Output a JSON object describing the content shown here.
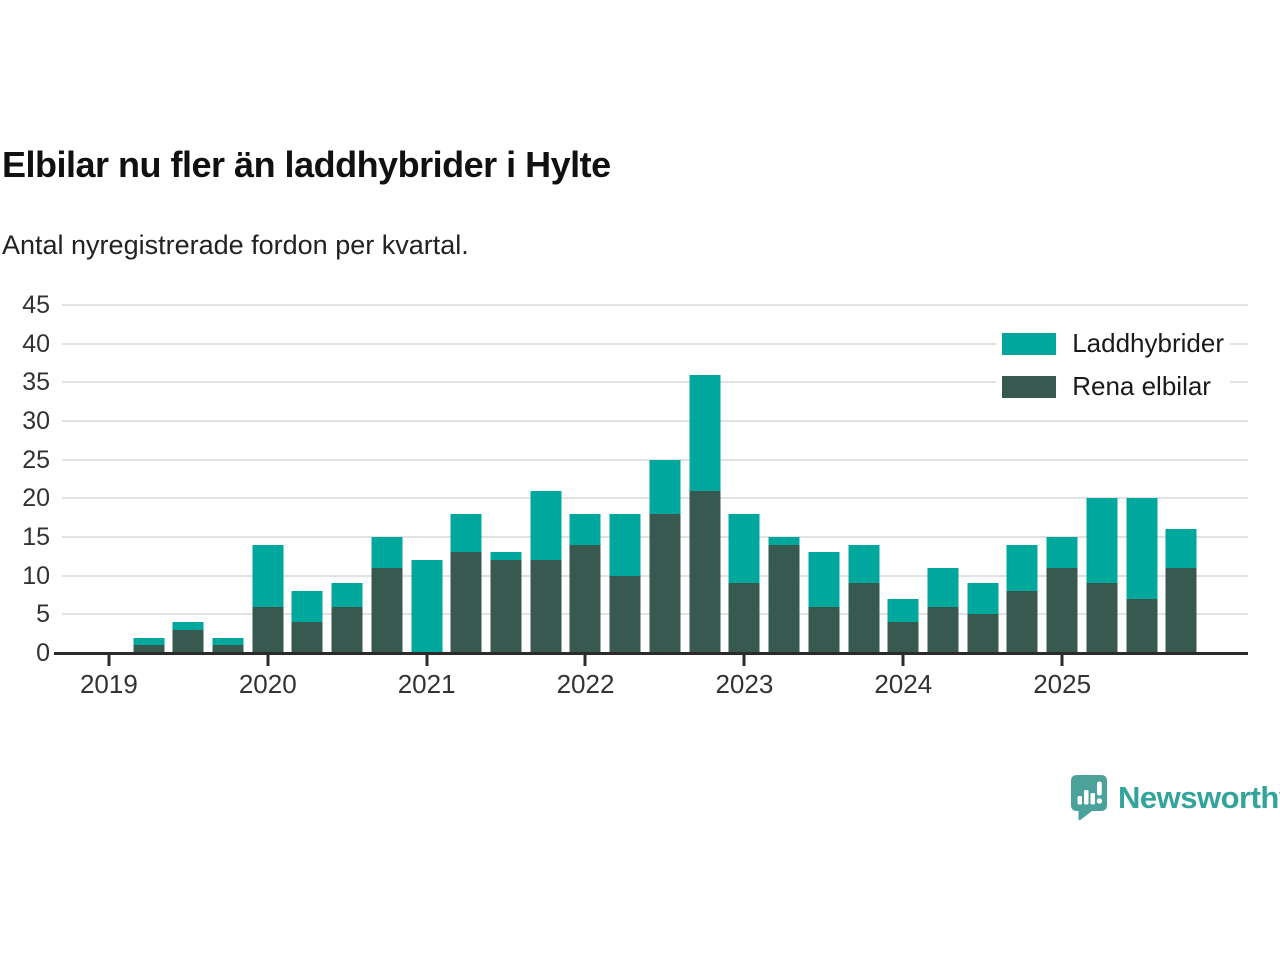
{
  "header": {
    "title": "Elbilar nu fler än laddhybrider i Hylte",
    "subtitle": "Antal nyregistrerade fordon per kvartal."
  },
  "colors": {
    "laddhybrider": "#00a79c",
    "rena_elbilar": "#37594f",
    "grid": "#e2e2e2",
    "axis": "#2b2b2b",
    "text": "#333333",
    "title_text": "#111111",
    "brand": "#32a49b",
    "brand_bubble": "#4ba29b"
  },
  "legend": {
    "items": [
      {
        "label": "Laddhybrider",
        "color_key": "laddhybrider"
      },
      {
        "label": "Rena elbilar",
        "color_key": "rena_elbilar"
      }
    ]
  },
  "chart_data": {
    "type": "bar",
    "stacked": true,
    "title": "Elbilar nu fler än laddhybrider i Hylte",
    "subtitle": "Antal nyregistrerade fordon per kvartal.",
    "xlabel": "",
    "ylabel": "",
    "ylim": [
      0,
      45
    ],
    "yticks": [
      0,
      5,
      10,
      15,
      20,
      25,
      30,
      35,
      40,
      45
    ],
    "grid": true,
    "legend_position": "top-right",
    "categories": [
      "2019 Q1",
      "2019 Q2",
      "2019 Q3",
      "2019 Q4",
      "2020 Q1",
      "2020 Q2",
      "2020 Q3",
      "2020 Q4",
      "2021 Q1",
      "2021 Q2",
      "2021 Q3",
      "2021 Q4",
      "2022 Q1",
      "2022 Q2",
      "2022 Q3",
      "2022 Q4",
      "2023 Q1",
      "2023 Q2",
      "2023 Q3",
      "2023 Q4",
      "2024 Q1",
      "2024 Q2",
      "2024 Q3",
      "2024 Q4",
      "2025 Q1",
      "2025 Q2",
      "2025 Q3",
      "2025 Q4"
    ],
    "series": [
      {
        "name": "Rena elbilar",
        "color_key": "rena_elbilar",
        "values": [
          0,
          1,
          3,
          1,
          6,
          4,
          6,
          11,
          0,
          13,
          12,
          12,
          14,
          10,
          18,
          21,
          9,
          14,
          6,
          9,
          4,
          6,
          5,
          8,
          11,
          9,
          7,
          11
        ]
      },
      {
        "name": "Laddhybrider",
        "color_key": "laddhybrider",
        "values": [
          0,
          1,
          1,
          1,
          8,
          4,
          3,
          4,
          12,
          5,
          1,
          9,
          4,
          8,
          7,
          15,
          9,
          1,
          7,
          5,
          3,
          5,
          4,
          6,
          4,
          11,
          13,
          5
        ]
      }
    ],
    "totals": [
      0,
      2,
      4,
      2,
      14,
      8,
      9,
      15,
      12,
      18,
      13,
      21,
      18,
      18,
      25,
      36,
      18,
      15,
      13,
      14,
      7,
      11,
      9,
      14,
      15,
      20,
      20,
      16
    ],
    "xticks": [
      {
        "slot": 0,
        "label": "2019"
      },
      {
        "slot": 4,
        "label": "2020"
      },
      {
        "slot": 8,
        "label": "2021"
      },
      {
        "slot": 12,
        "label": "2022"
      },
      {
        "slot": 16,
        "label": "2023"
      },
      {
        "slot": 20,
        "label": "2024"
      },
      {
        "slot": 24,
        "label": "2025"
      }
    ]
  },
  "footer": {
    "brand": "Newsworthy"
  }
}
